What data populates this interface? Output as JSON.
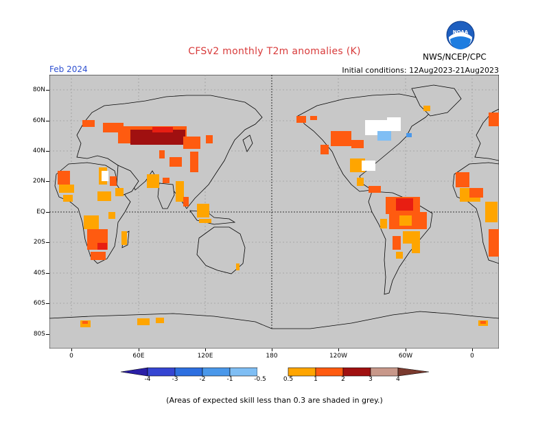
{
  "title": "CFSv2 monthly T2m anomalies (K)",
  "month": "Feb 2024",
  "initial_conditions": "Initial conditions: 12Aug2023-21Aug2023",
  "organization": "NWS/NCEP/CPC",
  "logo_text": "NOAA",
  "footnote": "(Areas of expected skill less than 0.3 are shaded in grey.)",
  "y_labels": [
    "80N",
    "60N",
    "40N",
    "20N",
    "EQ",
    "20S",
    "40S",
    "60S",
    "80S"
  ],
  "x_labels": [
    "0",
    "60E",
    "120E",
    "180",
    "120W",
    "60W",
    "0"
  ],
  "colorbar_labels": [
    "-4",
    "-3",
    "-2",
    "-1",
    "-0.5",
    "0.5",
    "1",
    "2",
    "3",
    "4"
  ],
  "colors": {
    "land_masked": "#c8c8c8",
    "neutral": "#ffffff",
    "c_n4": "#2a1fa6",
    "c_n3": "#3545d2",
    "c_n2": "#2d6fe0",
    "c_n1": "#4a98ea",
    "c_n05": "#7fbef4",
    "c_p05": "#ffa500",
    "c_p1": "#ff5b10",
    "c_p2": "#e81e12",
    "c_p3": "#a01010",
    "c_p4": "#c8988a",
    "c_p5": "#7a3a2e",
    "title": "#d83a3a",
    "month": "#2d4fd0"
  }
}
